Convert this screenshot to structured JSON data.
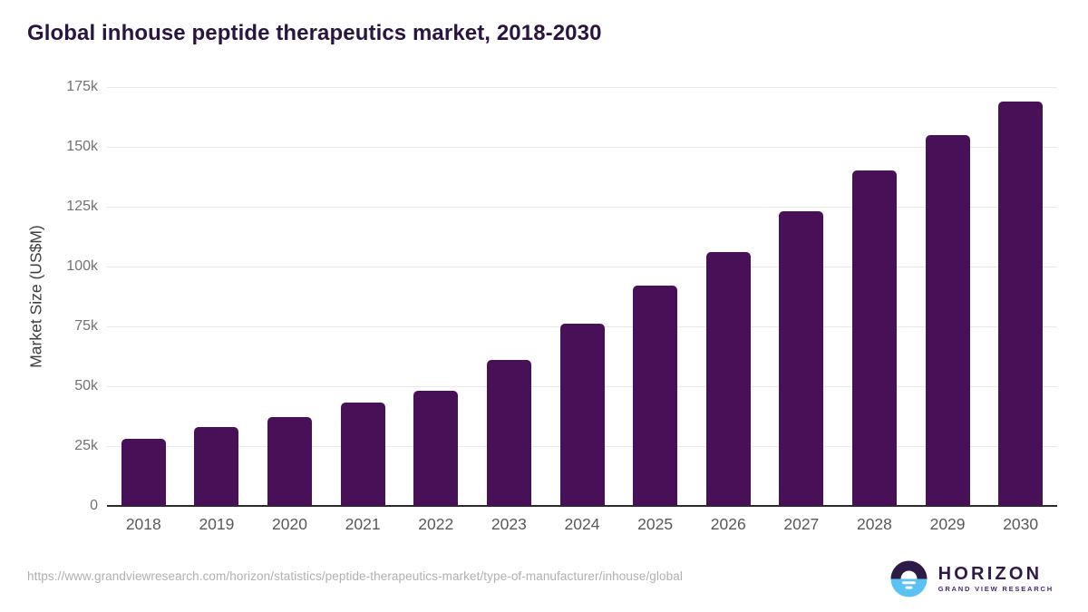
{
  "page": {
    "title": "Global inhouse peptide therapeutics market, 2018-2030"
  },
  "chart_data": {
    "type": "bar",
    "title": "Global inhouse peptide therapeutics market, 2018-2030",
    "categories": [
      "2018",
      "2019",
      "2020",
      "2021",
      "2022",
      "2023",
      "2024",
      "2025",
      "2026",
      "2027",
      "2028",
      "2029",
      "2030"
    ],
    "values": [
      28000,
      33000,
      37000,
      43000,
      48000,
      61000,
      76000,
      92000,
      106000,
      123000,
      140000,
      155000,
      169000
    ],
    "xlabel": "",
    "ylabel": "Market Size (US$M)",
    "ylim": [
      0,
      175000
    ],
    "ytick_interval": 25000,
    "ytick_labels": [
      "0",
      "25k",
      "50k",
      "75k",
      "100k",
      "125k",
      "150k",
      "175k"
    ],
    "grid": "horizontal-only",
    "legend": "none",
    "bar_color": "#481056"
  },
  "footer": {
    "source_url": "https://www.grandviewresearch.com/horizon/statistics/peptide-therapeutics-market/type-of-manufacturer/inhouse/global",
    "logo": {
      "brand": "HORIZON",
      "subtitle": "GRAND VIEW RESEARCH",
      "icon": "horizon-sunset-icon"
    }
  },
  "colors": {
    "bar": "#481056",
    "title_text": "#2a1540",
    "axis_line": "#2b2b2b",
    "gridline": "#e9e9e9",
    "y_tick_text": "#737373",
    "x_tick_text": "#58595b",
    "axis_label_text": "#3f3f3f",
    "url_text": "#b0b0b0",
    "logo_dark": "#2e1a47",
    "logo_blue": "#5bc2f4",
    "logo_subtitle_text": "#4b2a73",
    "background": "#ffffff"
  }
}
